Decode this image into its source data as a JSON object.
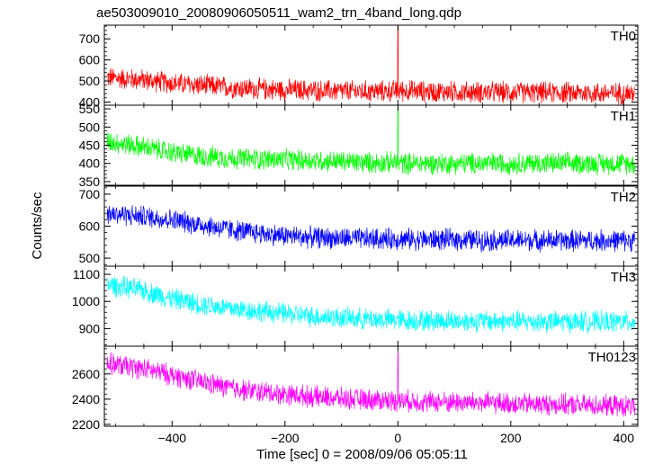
{
  "chart_data": {
    "type": "line",
    "title": "ae503009010_20080906050511_wam2_trn_4band_long.qdp",
    "xlabel": "Time [sec] 0 = 2008/09/06 05:05:11",
    "ylabel": "Counts/sec",
    "xlim": [
      -520,
      425
    ],
    "x_ticks": [
      -400,
      -200,
      0,
      200,
      400
    ],
    "x_tick_labels": [
      "−400",
      "−200",
      "0",
      "200",
      "400"
    ],
    "grid": false,
    "series": [
      {
        "name": "TH0",
        "color": "#ff0000",
        "ylim": [
          385,
          765
        ],
        "y_ticks": [
          400,
          500,
          600,
          700
        ],
        "x": [
          -510,
          -450,
          -400,
          -350,
          -300,
          -250,
          -200,
          -150,
          -100,
          -50,
          -10,
          0,
          10,
          50,
          100,
          150,
          200,
          250,
          300,
          350,
          400,
          420
        ],
        "values": [
          515,
          505,
          490,
          480,
          470,
          462,
          458,
          455,
          452,
          450,
          452,
          760,
          455,
          450,
          448,
          447,
          446,
          445,
          444,
          443,
          442,
          440
        ]
      },
      {
        "name": "TH1",
        "color": "#00ff00",
        "ylim": [
          340,
          560
        ],
        "y_ticks": [
          350,
          400,
          450,
          500,
          550
        ],
        "x": [
          -510,
          -450,
          -400,
          -350,
          -300,
          -250,
          -200,
          -150,
          -100,
          -50,
          -10,
          0,
          10,
          50,
          100,
          150,
          200,
          250,
          300,
          350,
          400,
          420
        ],
        "values": [
          460,
          445,
          430,
          420,
          415,
          412,
          410,
          408,
          405,
          402,
          402,
          555,
          400,
          400,
          400,
          400,
          400,
          400,
          400,
          400,
          400,
          398
        ]
      },
      {
        "name": "TH2",
        "color": "#0000ff",
        "ylim": [
          475,
          725
        ],
        "y_ticks": [
          500,
          600,
          700
        ],
        "x": [
          -510,
          -450,
          -400,
          -350,
          -300,
          -250,
          -200,
          -150,
          -100,
          -50,
          -10,
          0,
          10,
          50,
          100,
          150,
          200,
          250,
          300,
          350,
          400,
          420
        ],
        "values": [
          640,
          630,
          620,
          605,
          590,
          578,
          570,
          565,
          562,
          560,
          560,
          560,
          560,
          558,
          558,
          556,
          556,
          556,
          555,
          555,
          555,
          555
        ]
      },
      {
        "name": "TH3",
        "color": "#00ffff",
        "ylim": [
          835,
          1130
        ],
        "y_ticks": [
          900,
          1000,
          1100
        ],
        "x": [
          -510,
          -450,
          -400,
          -350,
          -300,
          -250,
          -200,
          -150,
          -100,
          -50,
          -10,
          0,
          10,
          50,
          100,
          150,
          200,
          250,
          300,
          350,
          400,
          420
        ],
        "values": [
          1060,
          1040,
          1010,
          990,
          975,
          965,
          955,
          945,
          940,
          935,
          932,
          932,
          930,
          930,
          928,
          928,
          926,
          926,
          925,
          925,
          925,
          925
        ]
      },
      {
        "name": "TH0123",
        "color": "#ff00ff",
        "ylim": [
          2185,
          2820
        ],
        "y_ticks": [
          2200,
          2400,
          2600
        ],
        "x": [
          -510,
          -450,
          -400,
          -350,
          -300,
          -250,
          -200,
          -150,
          -100,
          -50,
          -10,
          0,
          10,
          50,
          100,
          150,
          200,
          250,
          300,
          350,
          400,
          420
        ],
        "values": [
          2680,
          2640,
          2590,
          2540,
          2490,
          2460,
          2440,
          2420,
          2405,
          2395,
          2390,
          2770,
          2385,
          2380,
          2375,
          2370,
          2365,
          2360,
          2355,
          2350,
          2345,
          2340
        ]
      }
    ]
  }
}
